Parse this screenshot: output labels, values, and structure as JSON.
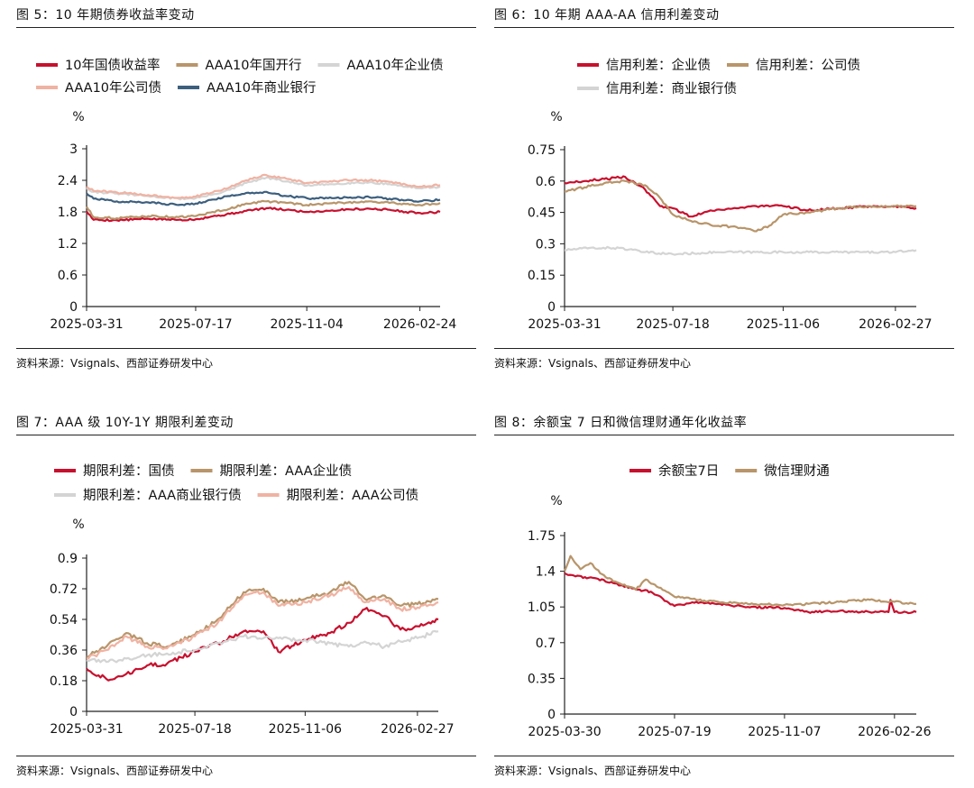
{
  "panels": [
    {
      "title": "图 5：10 年期债券收益率变动",
      "source": "资料来源：Vsignals、西部证券研发中心",
      "chart_data": {
        "type": "line",
        "unit": "%",
        "ylim": [
          0,
          3
        ],
        "yticks": [
          "0",
          "0.6",
          "1.2",
          "1.8",
          "2.4",
          "3"
        ],
        "xlim": [
          "2025-03-31",
          "2026-03-16"
        ],
        "xticks": [
          "2025-03-31",
          "2025-07-17",
          "2025-11-04",
          "2026-02-24"
        ],
        "legend_rows": [
          3,
          2
        ],
        "series": [
          {
            "name": "10年国债收益率",
            "color": "#c8102e",
            "x": [
              "2025-03-31",
              "2025-04-07",
              "2025-04-30",
              "2025-05-31",
              "2025-06-30",
              "2025-07-17",
              "2025-08-01",
              "2025-08-20",
              "2025-09-05",
              "2025-09-25",
              "2025-10-15",
              "2025-11-04",
              "2025-11-25",
              "2025-12-15",
              "2026-01-05",
              "2026-01-25",
              "2026-02-10",
              "2026-02-24",
              "2026-03-16"
            ],
            "values": [
              1.81,
              1.65,
              1.64,
              1.67,
              1.65,
              1.66,
              1.71,
              1.76,
              1.82,
              1.87,
              1.84,
              1.8,
              1.82,
              1.85,
              1.86,
              1.84,
              1.8,
              1.78,
              1.8
            ]
          },
          {
            "name": "AAA10年国开行",
            "color": "#b8956a",
            "x": [
              "2025-03-31",
              "2025-04-07",
              "2025-04-30",
              "2025-05-31",
              "2025-06-30",
              "2025-07-17",
              "2025-08-01",
              "2025-08-20",
              "2025-09-05",
              "2025-09-25",
              "2025-10-15",
              "2025-11-04",
              "2025-11-25",
              "2025-12-15",
              "2026-01-05",
              "2026-01-25",
              "2026-02-10",
              "2026-02-24",
              "2026-03-16"
            ],
            "values": [
              1.9,
              1.7,
              1.68,
              1.72,
              1.7,
              1.72,
              1.79,
              1.86,
              1.96,
              2.0,
              1.97,
              1.93,
              1.96,
              1.98,
              2.0,
              1.97,
              1.95,
              1.93,
              1.97
            ]
          },
          {
            "name": "AAA10年企业债",
            "color": "#d4d4d4",
            "x": [
              "2025-03-31",
              "2025-04-07",
              "2025-04-30",
              "2025-05-31",
              "2025-06-30",
              "2025-07-17",
              "2025-08-01",
              "2025-08-20",
              "2025-09-05",
              "2025-09-25",
              "2025-10-15",
              "2025-11-04",
              "2025-11-25",
              "2025-12-15",
              "2026-01-05",
              "2026-01-25",
              "2026-02-10",
              "2026-02-24",
              "2026-03-16"
            ],
            "values": [
              2.25,
              2.18,
              2.15,
              2.1,
              2.05,
              2.06,
              2.12,
              2.22,
              2.35,
              2.45,
              2.38,
              2.3,
              2.32,
              2.35,
              2.36,
              2.33,
              2.28,
              2.25,
              2.28
            ]
          },
          {
            "name": "AAA10年公司债",
            "color": "#f0b2a2",
            "x": [
              "2025-03-31",
              "2025-04-07",
              "2025-04-30",
              "2025-05-31",
              "2025-06-30",
              "2025-07-17",
              "2025-08-01",
              "2025-08-20",
              "2025-09-05",
              "2025-09-25",
              "2025-10-15",
              "2025-11-04",
              "2025-11-25",
              "2025-12-15",
              "2026-01-05",
              "2026-01-25",
              "2026-02-10",
              "2026-02-24",
              "2026-03-16"
            ],
            "values": [
              2.28,
              2.2,
              2.17,
              2.12,
              2.07,
              2.09,
              2.16,
              2.27,
              2.4,
              2.5,
              2.43,
              2.35,
              2.37,
              2.4,
              2.4,
              2.37,
              2.32,
              2.28,
              2.31
            ]
          },
          {
            "name": "AAA10年商业银行",
            "color": "#3c5f7e",
            "x": [
              "2025-03-31",
              "2025-04-07",
              "2025-04-30",
              "2025-05-31",
              "2025-06-30",
              "2025-07-17",
              "2025-08-01",
              "2025-08-20",
              "2025-09-05",
              "2025-09-25",
              "2025-10-15",
              "2025-11-04",
              "2025-11-25",
              "2025-12-15",
              "2026-01-05",
              "2026-01-25",
              "2026-02-10",
              "2026-02-24",
              "2026-03-16"
            ],
            "values": [
              2.15,
              2.05,
              2.0,
              1.98,
              1.93,
              1.96,
              2.03,
              2.1,
              2.16,
              2.18,
              2.1,
              2.06,
              2.06,
              2.07,
              2.08,
              2.05,
              2.02,
              2.0,
              2.03
            ]
          }
        ]
      }
    },
    {
      "title": "图 6：10 年期 AAA-AA 信用利差变动",
      "source": "资料来源：Vsignals、西部证券研发中心",
      "chart_data": {
        "type": "line",
        "unit": "%",
        "ylim": [
          0,
          0.75
        ],
        "yticks": [
          "0",
          "0.15",
          "0.3",
          "0.45",
          "0.6",
          "0.75"
        ],
        "xlim": [
          "2025-03-31",
          "2026-03-20"
        ],
        "xticks": [
          "2025-03-31",
          "2025-07-18",
          "2025-11-06",
          "2026-02-27"
        ],
        "legend_rows": [
          2,
          1
        ],
        "series": [
          {
            "name": "信用利差：企业债",
            "color": "#c8102e",
            "x": [
              "2025-03-31",
              "2025-04-20",
              "2025-05-10",
              "2025-05-31",
              "2025-06-20",
              "2025-07-05",
              "2025-07-18",
              "2025-08-05",
              "2025-08-25",
              "2025-09-20",
              "2025-10-10",
              "2025-11-06",
              "2025-12-01",
              "2026-01-01",
              "2026-02-01",
              "2026-02-27",
              "2026-03-20"
            ],
            "values": [
              0.59,
              0.6,
              0.61,
              0.62,
              0.56,
              0.48,
              0.47,
              0.43,
              0.46,
              0.47,
              0.48,
              0.48,
              0.46,
              0.47,
              0.48,
              0.48,
              0.47
            ]
          },
          {
            "name": "信用利差：公司债",
            "color": "#b8956a",
            "x": [
              "2025-03-31",
              "2025-04-20",
              "2025-05-10",
              "2025-05-31",
              "2025-06-20",
              "2025-07-05",
              "2025-07-18",
              "2025-08-05",
              "2025-08-25",
              "2025-09-20",
              "2025-10-10",
              "2025-10-25",
              "2025-11-06",
              "2025-12-01",
              "2026-01-01",
              "2026-02-01",
              "2026-02-27",
              "2026-03-20"
            ],
            "values": [
              0.55,
              0.57,
              0.59,
              0.6,
              0.58,
              0.52,
              0.44,
              0.41,
              0.39,
              0.38,
              0.36,
              0.39,
              0.44,
              0.45,
              0.47,
              0.48,
              0.48,
              0.48
            ]
          },
          {
            "name": "信用利差：商业银行债",
            "color": "#d4d4d4",
            "x": [
              "2025-03-31",
              "2025-04-25",
              "2025-05-25",
              "2025-06-20",
              "2025-07-18",
              "2025-09-01",
              "2025-11-06",
              "2026-01-01",
              "2026-02-27",
              "2026-03-20"
            ],
            "values": [
              0.27,
              0.28,
              0.28,
              0.26,
              0.25,
              0.26,
              0.26,
              0.26,
              0.26,
              0.27
            ]
          }
        ]
      }
    },
    {
      "title": "图 7：AAA 级 10Y-1Y 期限利差变动",
      "source": "资料来源：Vsignals、西部证券研发中心",
      "chart_data": {
        "type": "line",
        "unit": "%",
        "ylim": [
          0,
          0.9
        ],
        "yticks": [
          "0",
          "0.18",
          "0.36",
          "0.54",
          "0.72",
          "0.9"
        ],
        "xlim": [
          "2025-03-31",
          "2026-03-20"
        ],
        "xticks": [
          "2025-03-31",
          "2025-07-18",
          "2025-11-06",
          "2026-02-27"
        ],
        "legend_rows": [
          2,
          2
        ],
        "series": [
          {
            "name": "期限利差：国债",
            "color": "#c8102e",
            "x": [
              "2025-03-31",
              "2025-04-20",
              "2025-05-10",
              "2025-05-31",
              "2025-06-20",
              "2025-07-18",
              "2025-08-10",
              "2025-09-05",
              "2025-09-25",
              "2025-10-10",
              "2025-11-06",
              "2025-12-01",
              "2025-12-20",
              "2026-01-05",
              "2026-01-25",
              "2026-02-10",
              "2026-02-27",
              "2026-03-20"
            ],
            "values": [
              0.25,
              0.19,
              0.22,
              0.27,
              0.28,
              0.35,
              0.4,
              0.47,
              0.47,
              0.35,
              0.42,
              0.46,
              0.52,
              0.6,
              0.56,
              0.48,
              0.5,
              0.54
            ]
          },
          {
            "name": "期限利差：AAA企业债",
            "color": "#b8956a",
            "x": [
              "2025-03-31",
              "2025-04-20",
              "2025-05-10",
              "2025-05-31",
              "2025-06-20",
              "2025-07-18",
              "2025-08-10",
              "2025-09-05",
              "2025-09-25",
              "2025-10-10",
              "2025-11-06",
              "2025-12-01",
              "2025-12-20",
              "2026-01-05",
              "2026-01-25",
              "2026-02-10",
              "2026-02-27",
              "2026-03-20"
            ],
            "values": [
              0.32,
              0.38,
              0.46,
              0.4,
              0.38,
              0.45,
              0.54,
              0.7,
              0.72,
              0.64,
              0.66,
              0.7,
              0.76,
              0.66,
              0.68,
              0.62,
              0.63,
              0.66
            ]
          },
          {
            "name": "期限利差：AAA商业银行债",
            "color": "#d4d4d4",
            "x": [
              "2025-03-31",
              "2025-04-20",
              "2025-05-10",
              "2025-05-31",
              "2025-06-20",
              "2025-07-18",
              "2025-08-10",
              "2025-09-05",
              "2025-09-25",
              "2025-10-10",
              "2025-11-06",
              "2025-12-01",
              "2025-12-20",
              "2026-01-05",
              "2026-01-25",
              "2026-02-10",
              "2026-02-27",
              "2026-03-20"
            ],
            "values": [
              0.3,
              0.29,
              0.31,
              0.33,
              0.34,
              0.36,
              0.4,
              0.44,
              0.43,
              0.43,
              0.42,
              0.4,
              0.38,
              0.41,
              0.38,
              0.41,
              0.43,
              0.47
            ]
          },
          {
            "name": "期限利差：AAA公司债",
            "color": "#f0b2a2",
            "x": [
              "2025-03-31",
              "2025-04-20",
              "2025-05-10",
              "2025-05-31",
              "2025-06-20",
              "2025-07-18",
              "2025-08-10",
              "2025-09-05",
              "2025-09-25",
              "2025-10-10",
              "2025-11-06",
              "2025-12-01",
              "2025-12-20",
              "2026-01-05",
              "2026-01-25",
              "2026-02-10",
              "2026-02-27",
              "2026-03-20"
            ],
            "values": [
              0.31,
              0.36,
              0.44,
              0.38,
              0.37,
              0.44,
              0.52,
              0.68,
              0.7,
              0.62,
              0.64,
              0.68,
              0.73,
              0.64,
              0.66,
              0.6,
              0.61,
              0.64
            ]
          }
        ]
      }
    },
    {
      "title": "图 8：余额宝 7 日和微信理财通年化收益率",
      "source": "资料来源：Vsignals、西部证券研发中心",
      "chart_data": {
        "type": "line",
        "unit": "%",
        "ylim": [
          0,
          1.75
        ],
        "yticks": [
          "0",
          "0.35",
          "0.7",
          "1.05",
          "1.4",
          "1.75"
        ],
        "xlim": [
          "2025-03-30",
          "2026-03-20"
        ],
        "xticks": [
          "2025-03-30",
          "2025-07-19",
          "2025-11-07",
          "2026-02-26"
        ],
        "legend_rows": [
          2
        ],
        "series": [
          {
            "name": "余额宝7日",
            "color": "#c8102e",
            "x": [
              "2025-03-30",
              "2025-04-10",
              "2025-05-01",
              "2025-05-20",
              "2025-06-10",
              "2025-06-25",
              "2025-07-19",
              "2025-08-10",
              "2025-09-01",
              "2025-10-01",
              "2025-11-07",
              "2025-12-01",
              "2026-01-01",
              "2026-02-01",
              "2026-02-20",
              "2026-02-22",
              "2026-02-26",
              "2026-03-20"
            ],
            "values": [
              1.38,
              1.35,
              1.33,
              1.28,
              1.22,
              1.2,
              1.06,
              1.1,
              1.08,
              1.05,
              1.04,
              1.0,
              1.01,
              1.0,
              1.0,
              1.12,
              1.0,
              1.0
            ]
          },
          {
            "name": "微信理财通",
            "color": "#b8956a",
            "x": [
              "2025-03-30",
              "2025-04-05",
              "2025-04-15",
              "2025-04-25",
              "2025-05-05",
              "2025-05-20",
              "2025-06-10",
              "2025-06-20",
              "2025-07-01",
              "2025-07-19",
              "2025-08-10",
              "2025-09-01",
              "2025-10-01",
              "2025-11-07",
              "2025-12-01",
              "2026-01-01",
              "2026-02-01",
              "2026-02-26",
              "2026-03-20"
            ],
            "values": [
              1.4,
              1.55,
              1.42,
              1.48,
              1.38,
              1.3,
              1.22,
              1.32,
              1.25,
              1.15,
              1.12,
              1.1,
              1.08,
              1.07,
              1.08,
              1.1,
              1.12,
              1.1,
              1.08
            ]
          }
        ]
      }
    }
  ]
}
